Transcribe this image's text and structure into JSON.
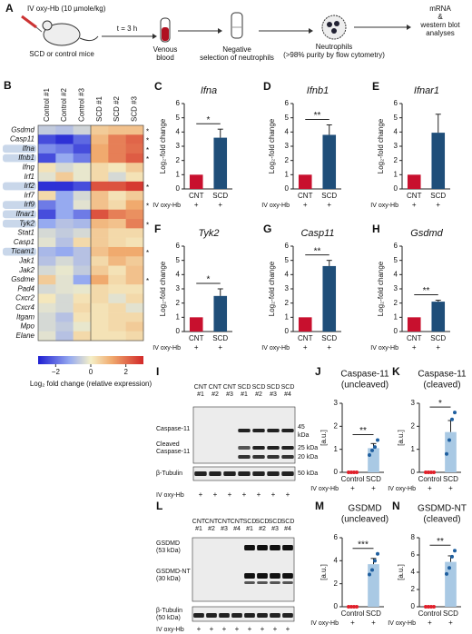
{
  "schematic": {
    "panel": "A",
    "dose": "IV oxy-Hb (10 µmole/kg)",
    "mice": "SCD or control mice",
    "time": "t = 3 h",
    "blood": [
      "Venous",
      "blood"
    ],
    "selection": [
      "Negative",
      "selection of neutrophils"
    ],
    "neutrophils": [
      "Neutrophils",
      "(>98% purity by flow cytometry)"
    ],
    "analysis": [
      "mRNA",
      "&",
      "western blot",
      "analyses"
    ]
  },
  "blots": [
    {
      "panel": "I",
      "lanes": [
        [
          "CNT",
          "#1"
        ],
        [
          "CNT",
          "#2"
        ],
        [
          "CNT",
          "#3"
        ],
        [
          "SCD",
          "#1"
        ],
        [
          "SCD",
          "#2"
        ],
        [
          "SCD",
          "#3"
        ],
        [
          "SCD",
          "#4"
        ]
      ],
      "left_labels": [
        "Caspase-11",
        "Cleaved",
        "Caspase-11",
        "β-Tubulin"
      ],
      "right_labels": [
        "45",
        "kDa",
        "25 kDa",
        "20 kDa",
        "50 kDa"
      ],
      "treatment": "IV oxy-Hb",
      "signs": [
        "+",
        "+",
        "+",
        "+",
        "+",
        "+",
        "+"
      ]
    },
    {
      "panel": "L",
      "lanes": [
        [
          "CNT",
          "#1"
        ],
        [
          "CNT",
          "#2"
        ],
        [
          "CNT",
          "#3"
        ],
        [
          "CNT",
          "#4"
        ],
        [
          "SCD",
          "#1"
        ],
        [
          "SCD",
          "#2"
        ],
        [
          "SCD",
          "#3"
        ],
        [
          "SCD",
          "#4"
        ]
      ],
      "left_labels": [
        "GSDMD",
        "(53 kDa)",
        "GSDMD-NT",
        "(30 kDa)",
        "β-Tubulin",
        "(50 kDa)"
      ],
      "treatment": "IV oxy-Hb",
      "signs": [
        "+",
        "+",
        "+",
        "+",
        "+",
        "+",
        "+",
        "+"
      ]
    }
  ],
  "chart_data": [
    {
      "type": "heatmap",
      "panel": "B",
      "columns": [
        "Control #1",
        "Control #2",
        "Control #3",
        "SCD #1",
        "SCD #2",
        "SCD #3"
      ],
      "rows": [
        "Gsdmd",
        "Casp11",
        "Ifna",
        "Ifnb1",
        "Ifng",
        "Irf1",
        "Irf2",
        "Irf7",
        "Irf9",
        "Ifnar1",
        "Tyk2",
        "Stat1",
        "Casp1",
        "Ticam1",
        "Jak1",
        "Jak2",
        "Gsdme",
        "Pad4",
        "Cxcr2",
        "Cxcr4",
        "Itgam",
        "Mpo",
        "Elane"
      ],
      "highlighted": [
        false,
        false,
        true,
        true,
        false,
        false,
        true,
        false,
        true,
        true,
        true,
        false,
        false,
        true,
        false,
        false,
        false,
        false,
        false,
        false,
        false,
        false,
        false
      ],
      "annotations": [
        "*",
        "*",
        "*",
        "*",
        null,
        null,
        "*",
        null,
        "*",
        null,
        "*",
        null,
        null,
        "*",
        null,
        null,
        "*",
        null,
        null,
        null,
        null,
        null,
        null
      ],
      "values": [
        [
          -0.8,
          -1,
          -0.6,
          0.8,
          1,
          1
        ],
        [
          -2.5,
          -2.8,
          -2.2,
          1.2,
          2,
          2.3
        ],
        [
          -1.8,
          -2,
          -2.5,
          1.5,
          2,
          2.2
        ],
        [
          -2.5,
          -1.5,
          -2,
          1.5,
          2,
          2.4
        ],
        [
          0.3,
          -0.5,
          -0.2,
          0.5,
          0.2,
          0.8
        ],
        [
          -0.3,
          0.8,
          -0.2,
          0.5,
          -0.5,
          0.3
        ],
        [
          -2.8,
          -2.8,
          -2.5,
          2.5,
          2.5,
          2.8
        ],
        [
          0.5,
          -1.5,
          -0.5,
          1,
          0.3,
          0.8
        ],
        [
          -2,
          -1.5,
          -0.3,
          1,
          0.5,
          1.5
        ],
        [
          -2.5,
          -1.5,
          -2,
          2.5,
          2,
          1.8
        ],
        [
          -1.5,
          -1,
          -1.2,
          1.2,
          1,
          2
        ],
        [
          -0.5,
          -0.8,
          -0.5,
          0.8,
          0.5,
          0.5
        ],
        [
          -0.3,
          -1,
          0.5,
          0.8,
          0.5,
          0.3
        ],
        [
          -1.2,
          -1.5,
          -1,
          1,
          1.5,
          1.5
        ],
        [
          -1,
          -0.5,
          -1,
          0.5,
          1.2,
          0.8
        ],
        [
          -0.5,
          -0.2,
          -0.8,
          0.8,
          0.3,
          1
        ],
        [
          0.8,
          -0.3,
          -1.5,
          1.5,
          0.5,
          1
        ],
        [
          -0.5,
          -0.3,
          -0.2,
          0.5,
          0.3,
          0.3
        ],
        [
          0.2,
          -0.5,
          0.3,
          0.5,
          -0.3,
          0.5
        ],
        [
          -0.3,
          -0.5,
          0.5,
          0.3,
          0.5,
          -0.3
        ],
        [
          -0.5,
          -1,
          0.3,
          0.3,
          0.5,
          0.5
        ],
        [
          -0.5,
          -0.8,
          -0.2,
          0.3,
          0.5,
          0.8
        ],
        [
          -0.3,
          -1,
          0.5,
          0.3,
          0.3,
          0.5
        ]
      ],
      "zlim": [
        -3,
        3
      ],
      "zticks": [
        {
          "value": -2,
          "label": "−2"
        },
        0,
        2
      ],
      "colorbar_label": "Log₂ fold change (relative expression)"
    },
    {
      "type": "bar",
      "panel": "C",
      "title": "Ifna",
      "ylabel": "Log₂-fold change",
      "categories": [
        "CNT",
        "SCD"
      ],
      "values": [
        1,
        3.6
      ],
      "errors": [
        0,
        0.6
      ],
      "colors": [
        "#c8102e",
        "#1f4e79"
      ],
      "ylim": [
        0,
        6
      ],
      "yticks": [
        0,
        1,
        2,
        3,
        4,
        5,
        6
      ],
      "significance": "*",
      "treatment": "IV oxy-Hb",
      "signs": [
        "+",
        "+"
      ]
    },
    {
      "type": "bar",
      "panel": "D",
      "title": "Ifnb1",
      "ylabel": "Log₂-fold change",
      "categories": [
        "CNT",
        "SCD"
      ],
      "values": [
        1,
        3.8
      ],
      "errors": [
        0,
        0.7
      ],
      "colors": [
        "#c8102e",
        "#1f4e79"
      ],
      "ylim": [
        0,
        6
      ],
      "yticks": [
        0,
        1,
        2,
        3,
        4,
        5,
        6
      ],
      "significance": "**",
      "treatment": "IV oxy-Hb",
      "signs": [
        "+",
        "+"
      ]
    },
    {
      "type": "bar",
      "panel": "E",
      "title": "Ifnar1",
      "ylabel": "Log₂-fold change",
      "categories": [
        "CNT",
        "SCD"
      ],
      "values": [
        1,
        3.95
      ],
      "errors": [
        0,
        1.3
      ],
      "colors": [
        "#c8102e",
        "#1f4e79"
      ],
      "ylim": [
        0,
        6
      ],
      "yticks": [
        0,
        1,
        2,
        3,
        4,
        5,
        6
      ],
      "treatment": "IV oxy-Hb",
      "signs": [
        "+",
        "+"
      ]
    },
    {
      "type": "bar",
      "panel": "F",
      "title": "Tyk2",
      "ylabel": "Log₂-fold change",
      "categories": [
        "CNT",
        "SCD"
      ],
      "values": [
        1,
        2.5
      ],
      "errors": [
        0,
        0.5
      ],
      "colors": [
        "#c8102e",
        "#1f4e79"
      ],
      "ylim": [
        0,
        6
      ],
      "yticks": [
        0,
        1,
        2,
        3,
        4,
        5,
        6
      ],
      "significance": "*",
      "treatment": "IV oxy-Hb",
      "signs": [
        "+",
        "+"
      ]
    },
    {
      "type": "bar",
      "panel": "G",
      "title": "Casp11",
      "ylabel": "Log₂-fold change",
      "categories": [
        "CNT",
        "SCD"
      ],
      "values": [
        1,
        4.6
      ],
      "errors": [
        0,
        0.4
      ],
      "colors": [
        "#c8102e",
        "#1f4e79"
      ],
      "ylim": [
        0,
        6
      ],
      "yticks": [
        0,
        1,
        2,
        3,
        4,
        5,
        6
      ],
      "significance": "**",
      "treatment": "IV oxy-Hb",
      "signs": [
        "+",
        "+"
      ]
    },
    {
      "type": "bar",
      "panel": "H",
      "title": "Gsdmd",
      "ylabel": "Log₂-fold change",
      "categories": [
        "CNT",
        "SCD"
      ],
      "values": [
        1,
        2.1
      ],
      "errors": [
        0,
        0.1
      ],
      "colors": [
        "#c8102e",
        "#1f4e79"
      ],
      "ylim": [
        0,
        6
      ],
      "yticks": [
        0,
        1,
        2,
        3,
        4,
        5,
        6
      ],
      "significance": "**",
      "treatment": "IV oxy-Hb",
      "signs": [
        "+",
        "+"
      ]
    },
    {
      "type": "bar",
      "panel": "J",
      "title": "Caspase-11",
      "subtitle": "(uncleaved)",
      "ylabel": "[a.u.]",
      "categories": [
        "Control",
        "SCD"
      ],
      "values": [
        0,
        1.05
      ],
      "errors": [
        0,
        0.2
      ],
      "points": [
        [
          0,
          0,
          0,
          0
        ],
        [
          0.75,
          0.95,
          1.1,
          1.4
        ]
      ],
      "colors": [
        "#a9c9e4",
        "#a9c9e4"
      ],
      "point_colors": [
        "#e0202a",
        "#1f5f9f"
      ],
      "ylim": [
        0,
        3
      ],
      "yticks": [
        0,
        1,
        2,
        3
      ],
      "significance": "**",
      "treatment": "IV oxy-Hb",
      "signs": [
        "+",
        "+"
      ]
    },
    {
      "type": "bar",
      "panel": "K",
      "title": "Caspase-11",
      "subtitle": "(cleaved)",
      "ylabel": "[a.u.]",
      "categories": [
        "Control",
        "SCD"
      ],
      "values": [
        0,
        1.75
      ],
      "errors": [
        0,
        0.5
      ],
      "points": [
        [
          0,
          0,
          0,
          0
        ],
        [
          0.8,
          1.4,
          2.3,
          2.6
        ]
      ],
      "colors": [
        "#a9c9e4",
        "#a9c9e4"
      ],
      "point_colors": [
        "#e0202a",
        "#1f5f9f"
      ],
      "ylim": [
        0,
        3
      ],
      "yticks": [
        0,
        1,
        2,
        3
      ],
      "significance": "*",
      "treatment": "IV oxy-Hb",
      "signs": [
        "+",
        "+"
      ]
    },
    {
      "type": "bar",
      "panel": "M",
      "title": "GSDMD",
      "subtitle": "(uncleaved)",
      "ylabel": "[a.u.]",
      "categories": [
        "Control",
        "SCD"
      ],
      "values": [
        0,
        3.7
      ],
      "errors": [
        0,
        0.5
      ],
      "points": [
        [
          0,
          0,
          0,
          0
        ],
        [
          2.8,
          3.2,
          4,
          4.6
        ]
      ],
      "colors": [
        "#a9c9e4",
        "#a9c9e4"
      ],
      "point_colors": [
        "#e0202a",
        "#1f5f9f"
      ],
      "ylim": [
        0,
        6
      ],
      "yticks": [
        0,
        2,
        4,
        6
      ],
      "significance": "***",
      "treatment": "IV oxy-Hb",
      "signs": [
        "+",
        "+"
      ]
    },
    {
      "type": "bar",
      "panel": "N",
      "title": "GSDMD-NT",
      "subtitle": "(cleaved)",
      "ylabel": "[a.u.]",
      "categories": [
        "Control",
        "SCD"
      ],
      "values": [
        0,
        5.2
      ],
      "errors": [
        0,
        0.7
      ],
      "points": [
        [
          0,
          0,
          0,
          0
        ],
        [
          3.8,
          4.5,
          5.8,
          6.5
        ]
      ],
      "colors": [
        "#a9c9e4",
        "#a9c9e4"
      ],
      "point_colors": [
        "#e0202a",
        "#1f5f9f"
      ],
      "ylim": [
        0,
        8
      ],
      "yticks": [
        0,
        2,
        4,
        6,
        8
      ],
      "significance": "**",
      "treatment": "IV oxy-Hb",
      "signs": [
        "+",
        "+"
      ]
    }
  ]
}
